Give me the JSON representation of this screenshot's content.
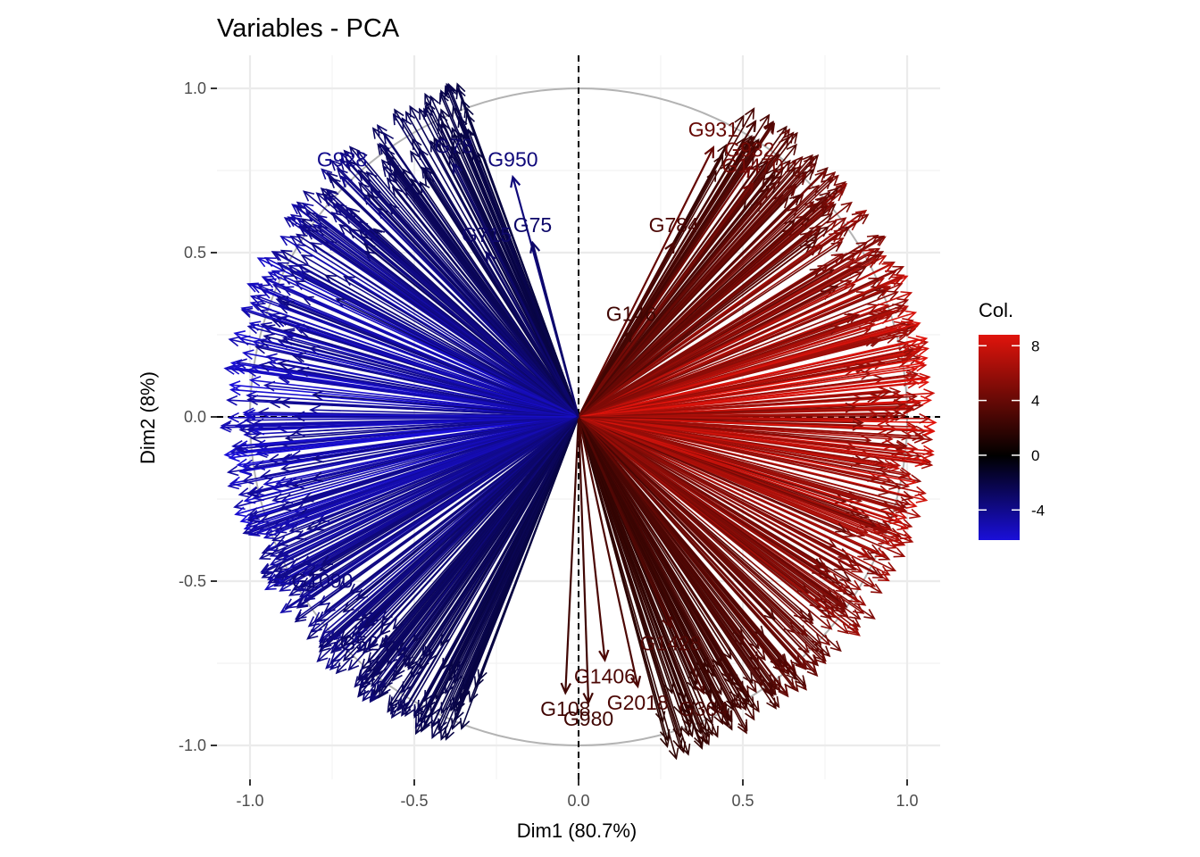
{
  "chart_data": {
    "type": "scatter",
    "subtype": "pca-variable-correlation-circle",
    "title": "Variables - PCA",
    "xlabel": "Dim1 (80.7%)",
    "ylabel": "Dim2 (8%)",
    "xlim": [
      -1.1,
      1.1
    ],
    "ylim": [
      -1.1,
      1.1
    ],
    "x_ticks": [
      -1.0,
      -0.5,
      0.0,
      0.5,
      1.0
    ],
    "x_tick_labels": [
      "-1.0",
      "-0.5",
      "0.0",
      "0.5",
      "1.0"
    ],
    "y_ticks": [
      -1.0,
      -0.5,
      0.0,
      0.5,
      1.0
    ],
    "y_tick_labels": [
      "-1.0",
      "-0.5",
      "0.0",
      "0.5",
      "1.0"
    ],
    "grid": true,
    "unit_circle": true,
    "legend": {
      "title": "Col.",
      "placement": "right",
      "ticks": [
        8,
        4,
        0,
        -4
      ],
      "tick_labels": [
        "8",
        "4",
        "0",
        "-4"
      ],
      "range": [
        -6.2,
        8.8
      ],
      "colors": {
        "low": "#1a0fd9",
        "mid": "#000000",
        "high": "#e0140c"
      }
    },
    "labeled_variables": [
      {
        "name": "G931",
        "x": 0.41,
        "y": 0.82,
        "col": 4.0
      },
      {
        "name": "G932",
        "x": 0.52,
        "y": 0.76,
        "col": 4.5
      },
      {
        "name": "G784",
        "x": 0.29,
        "y": 0.53,
        "col": 3.0
      },
      {
        "name": "G146",
        "x": 0.16,
        "y": 0.26,
        "col": 2.5
      },
      {
        "name": "G78",
        "x": -0.38,
        "y": 0.77,
        "col": -3.0
      },
      {
        "name": "G950",
        "x": -0.2,
        "y": 0.73,
        "col": -3.5
      },
      {
        "name": "G75",
        "x": -0.14,
        "y": 0.53,
        "col": -3.0
      },
      {
        "name": "G928",
        "x": -0.72,
        "y": 0.73,
        "col": -4.0
      },
      {
        "name": "G524",
        "x": -0.65,
        "y": -0.64,
        "col": -3.0
      },
      {
        "name": "G108",
        "x": -0.04,
        "y": -0.84,
        "col": 2.5
      },
      {
        "name": "G980",
        "x": 0.03,
        "y": -0.87,
        "col": 2.5
      },
      {
        "name": "G1406",
        "x": 0.08,
        "y": -0.74,
        "col": 3.0
      },
      {
        "name": "G364",
        "x": 0.38,
        "y": -0.84,
        "col": 3.0
      },
      {
        "name": "G1428",
        "x": 0.28,
        "y": -0.64,
        "col": 3.2
      },
      {
        "name": "G2018",
        "x": 0.18,
        "y": -0.82,
        "col": 3.0
      },
      {
        "name": "G1090",
        "x": -0.78,
        "y": -0.45,
        "col": -3.5
      },
      {
        "name": "G1470",
        "x": 0.53,
        "y": 0.71,
        "col": 4.5
      },
      {
        "name": "G715",
        "x": -0.28,
        "y": 0.5,
        "col": -3.0
      }
    ]
  }
}
